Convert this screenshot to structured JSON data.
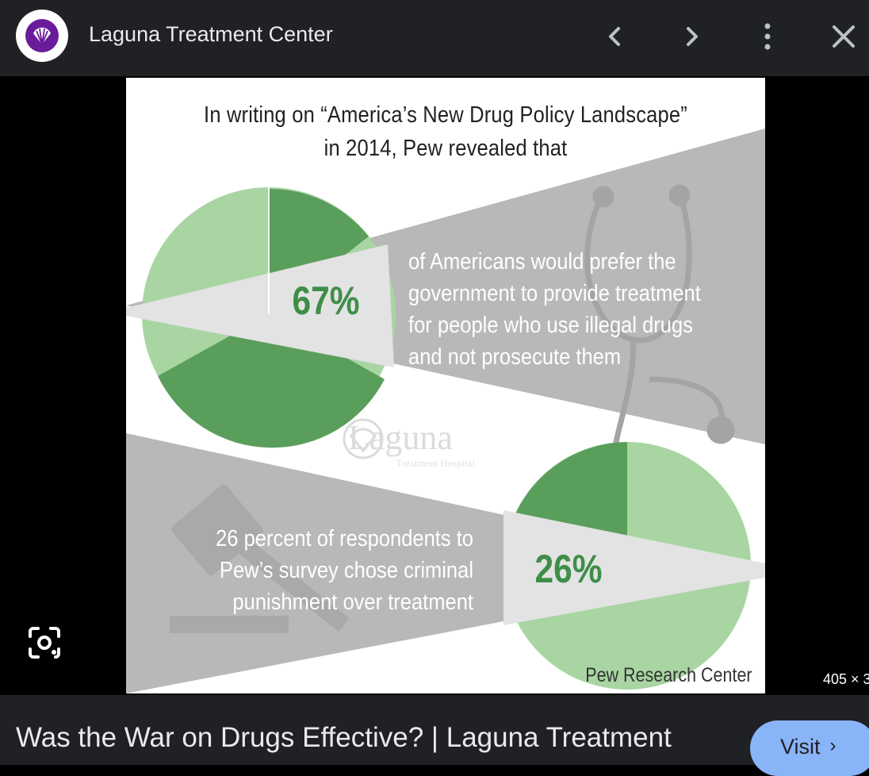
{
  "header": {
    "site_name": "Laguna Treatment Center",
    "icons": [
      "laguna-logo-icon",
      "chevron-left-icon",
      "chevron-right-icon",
      "more-vert-icon",
      "close-icon"
    ]
  },
  "infographic": {
    "heading_line1": "In writing on “America’s New Drug Policy Landscape”",
    "heading_line2": "in 2014, Pew revealed that",
    "stat1": {
      "value": "67%",
      "text_lines": [
        "of Americans would prefer the",
        "government to provide treatment",
        "for people who use illegal drugs",
        "and not prosecute them"
      ]
    },
    "stat2": {
      "value": "26%",
      "text_lines": [
        "26 percent of respondents to",
        "Pew’s survey chose criminal",
        "punishment over treatment"
      ]
    },
    "watermark": "Laguna",
    "watermark_sub": "Treatment Hospital",
    "source": "Pew Research Center",
    "colors": {
      "dark_green": "#5a9e5c",
      "light_green": "#a8d5a2",
      "gray": "#b8b8b8",
      "pct_green": "#3e8e48"
    }
  },
  "viewer": {
    "size_label": "405 × 3"
  },
  "footer": {
    "title": "Was the War on Drugs Effective? | Laguna Treatment",
    "visit_label": "Visit",
    "visit_chevron": "›"
  }
}
